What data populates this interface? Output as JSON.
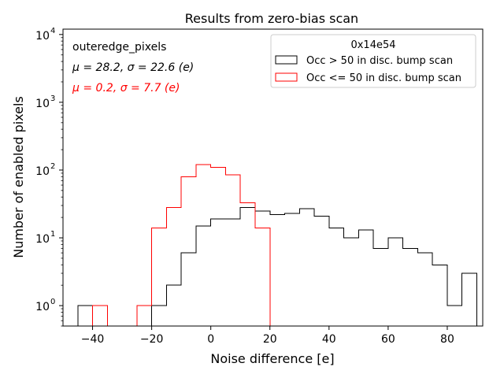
{
  "chart_data": {
    "type": "histogram",
    "title": "Results from zero-bias scan",
    "xlabel": "Noise difference [e]",
    "ylabel": "Number of enabled pixels",
    "xlim": [
      -50,
      92
    ],
    "ylim": [
      0.5,
      12000
    ],
    "yscale": "log",
    "grid": false,
    "x_ticks": [
      -40,
      -20,
      0,
      20,
      40,
      60,
      80
    ],
    "x_tick_labels": [
      "−40",
      "−20",
      "0",
      "20",
      "40",
      "60",
      "80"
    ],
    "y_ticks": [
      1,
      10,
      100,
      1000,
      10000
    ],
    "y_tick_bases": [
      "10",
      "10",
      "10",
      "10",
      "10"
    ],
    "y_tick_exponents": [
      "0",
      "1",
      "2",
      "3",
      "4"
    ],
    "legend": {
      "title": "0x14e54",
      "placement": "top-right",
      "entries": [
        "Occ > 50 in disc. bump scan",
        "Occ <= 50 in disc. bump scan"
      ]
    },
    "annotations": [
      {
        "text": "outeredge_pixels",
        "color": "#000000"
      },
      {
        "text": "μ = 28.2, σ = 22.6 (e)",
        "color": "#000000"
      },
      {
        "text": "μ = 0.2, σ = 7.7 (e)",
        "color": "#ff0000"
      }
    ],
    "series": [
      {
        "name": "Occ > 50 in disc. bump scan",
        "color": "#000000",
        "bins": [
          {
            "x0": -45,
            "x1": -40,
            "count": 1
          },
          {
            "x0": -20,
            "x1": -15,
            "count": 1
          },
          {
            "x0": -15,
            "x1": -10,
            "count": 2
          },
          {
            "x0": -10,
            "x1": -5,
            "count": 6
          },
          {
            "x0": -5,
            "x1": 0,
            "count": 15
          },
          {
            "x0": 0,
            "x1": 5,
            "count": 19
          },
          {
            "x0": 5,
            "x1": 10,
            "count": 19
          },
          {
            "x0": 10,
            "x1": 15,
            "count": 28
          },
          {
            "x0": 15,
            "x1": 20,
            "count": 25
          },
          {
            "x0": 20,
            "x1": 25,
            "count": 22
          },
          {
            "x0": 25,
            "x1": 30,
            "count": 23
          },
          {
            "x0": 30,
            "x1": 35,
            "count": 27
          },
          {
            "x0": 35,
            "x1": 40,
            "count": 21
          },
          {
            "x0": 40,
            "x1": 45,
            "count": 14
          },
          {
            "x0": 45,
            "x1": 50,
            "count": 10
          },
          {
            "x0": 50,
            "x1": 55,
            "count": 13
          },
          {
            "x0": 55,
            "x1": 60,
            "count": 7
          },
          {
            "x0": 60,
            "x1": 65,
            "count": 10
          },
          {
            "x0": 65,
            "x1": 70,
            "count": 7
          },
          {
            "x0": 70,
            "x1": 75,
            "count": 6
          },
          {
            "x0": 75,
            "x1": 80,
            "count": 4
          },
          {
            "x0": 80,
            "x1": 85,
            "count": 1
          },
          {
            "x0": 85,
            "x1": 90,
            "count": 3
          }
        ]
      },
      {
        "name": "Occ <= 50 in disc. bump scan",
        "color": "#ff0000",
        "bins": [
          {
            "x0": -40,
            "x1": -35,
            "count": 1
          },
          {
            "x0": -25,
            "x1": -20,
            "count": 1
          },
          {
            "x0": -20,
            "x1": -15,
            "count": 14
          },
          {
            "x0": -15,
            "x1": -10,
            "count": 28
          },
          {
            "x0": -10,
            "x1": -5,
            "count": 80
          },
          {
            "x0": -5,
            "x1": 0,
            "count": 120
          },
          {
            "x0": 0,
            "x1": 5,
            "count": 110
          },
          {
            "x0": 5,
            "x1": 10,
            "count": 85
          },
          {
            "x0": 10,
            "x1": 15,
            "count": 33
          },
          {
            "x0": 15,
            "x1": 20,
            "count": 14
          }
        ]
      }
    ]
  }
}
